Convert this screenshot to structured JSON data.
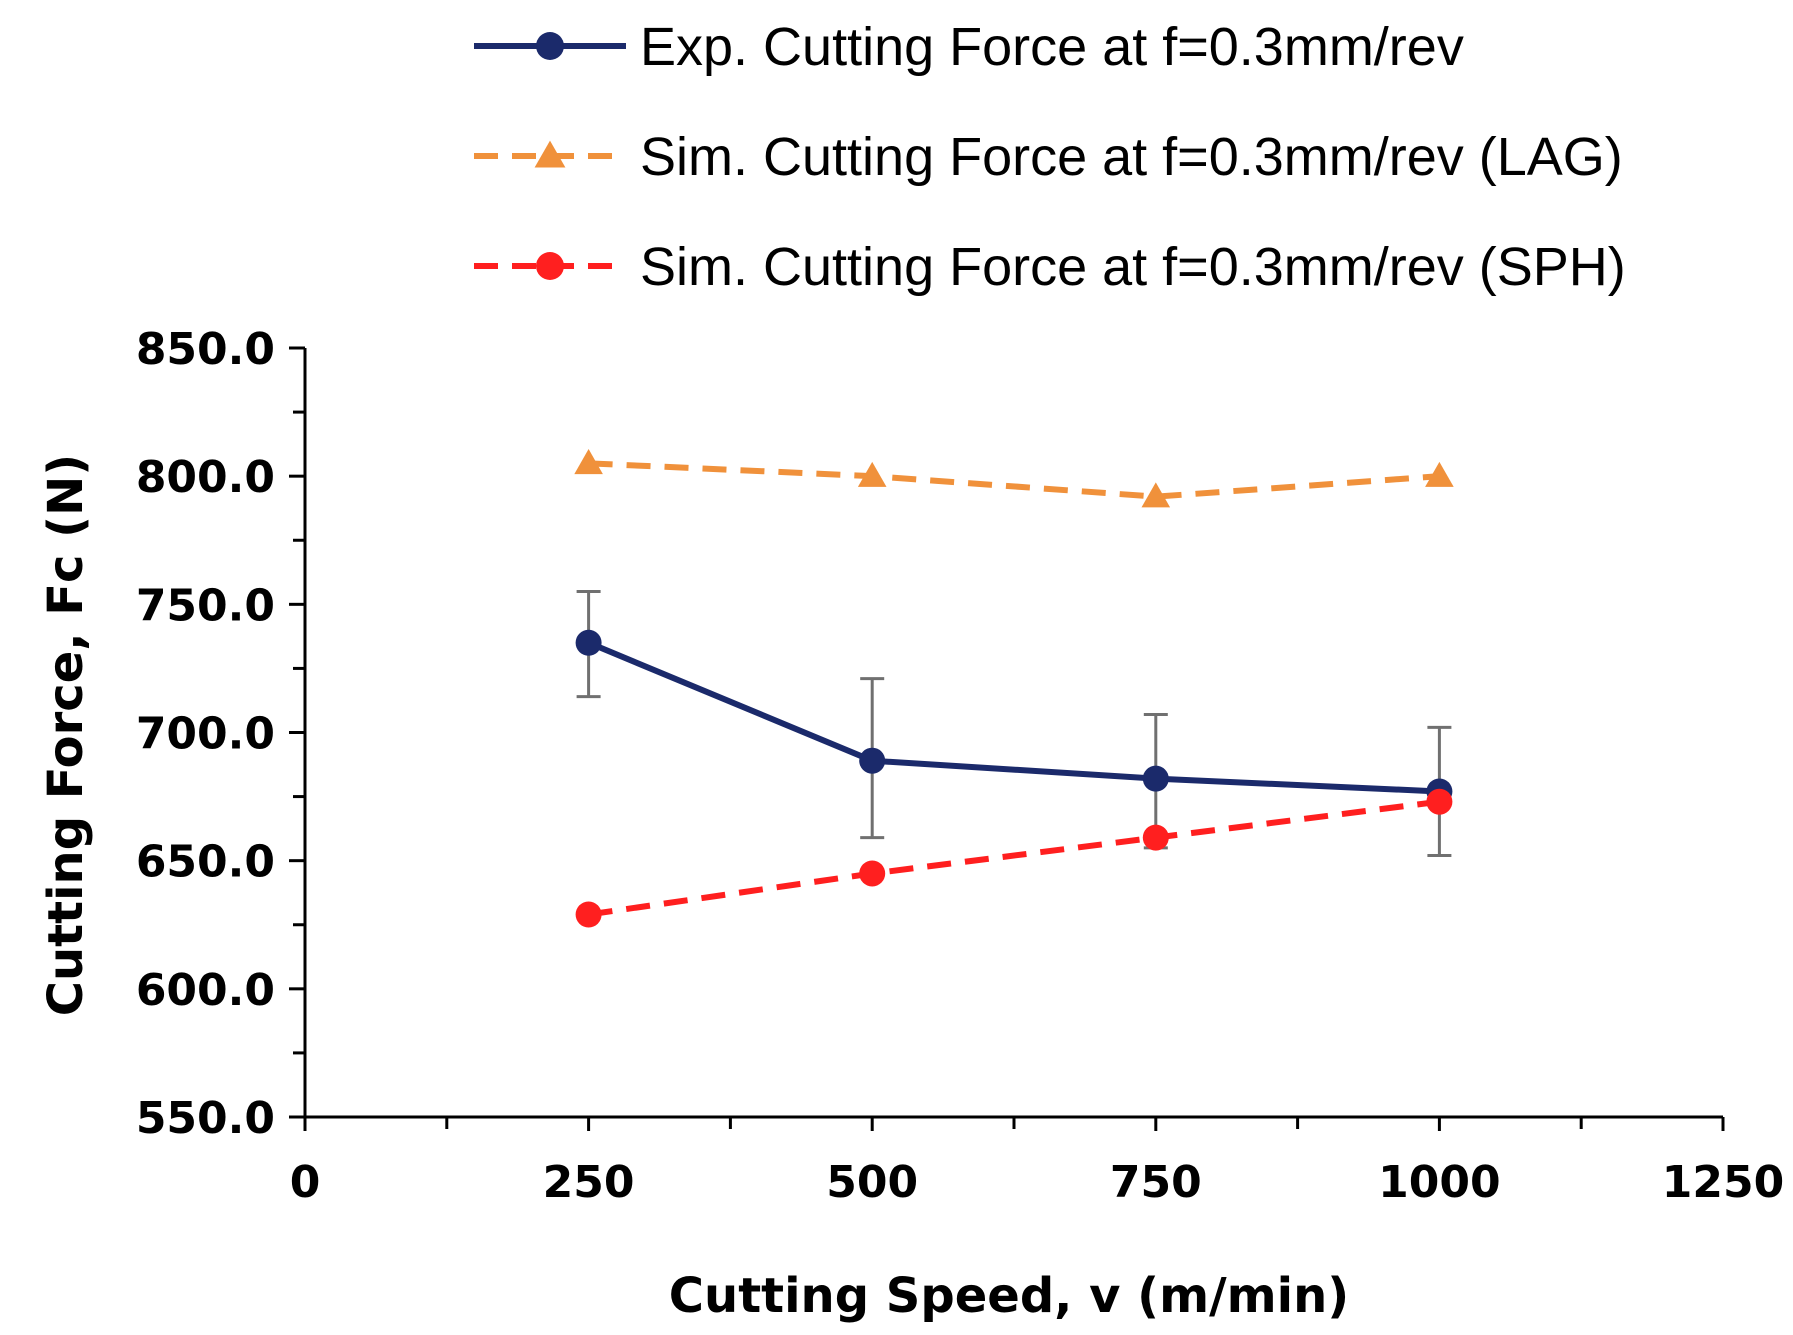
{
  "chart_data": {
    "type": "line",
    "title": "",
    "xlabel": "Cutting Speed, v (m/min)",
    "ylabel": "Cutting Force, Fc  (N)",
    "xlim": [
      0,
      1250
    ],
    "ylim": [
      550,
      850
    ],
    "x_major_ticks": [
      0,
      250,
      500,
      750,
      1000,
      1250
    ],
    "x_tick_labels": [
      "0",
      "250",
      "500",
      "750",
      "1000",
      "1250"
    ],
    "x_minor_step": 125,
    "y_major_ticks": [
      550,
      600,
      650,
      700,
      750,
      800,
      850
    ],
    "y_tick_labels": [
      "550.0",
      "600.0",
      "650.0",
      "700.0",
      "750.0",
      "800.0",
      "850.0"
    ],
    "y_minor_step": 25,
    "grid": false,
    "legend_position": "top",
    "series": [
      {
        "name": "Exp. Cutting Force at f=0.3mm/rev",
        "color": "#1b2a6b",
        "line_style": "solid",
        "marker": "circle",
        "x": [
          250,
          500,
          750,
          1000
        ],
        "values": [
          735,
          689,
          682,
          677
        ],
        "error_low": [
          714,
          659,
          655,
          652
        ],
        "error_high": [
          755,
          721,
          707,
          702
        ]
      },
      {
        "name": "Sim. Cutting Force at f=0.3mm/rev (LAG)",
        "color": "#f0913b",
        "line_style": "dashed",
        "marker": "triangle",
        "x": [
          250,
          500,
          750,
          1000
        ],
        "values": [
          805,
          800,
          792,
          800
        ]
      },
      {
        "name": "Sim. Cutting Force at f=0.3mm/rev (SPH)",
        "color": "#ff1f1f",
        "line_style": "dashed",
        "marker": "circle",
        "x": [
          250,
          500,
          750,
          1000
        ],
        "values": [
          629,
          645,
          659,
          673
        ]
      }
    ],
    "errorbar_color": "#707070"
  }
}
